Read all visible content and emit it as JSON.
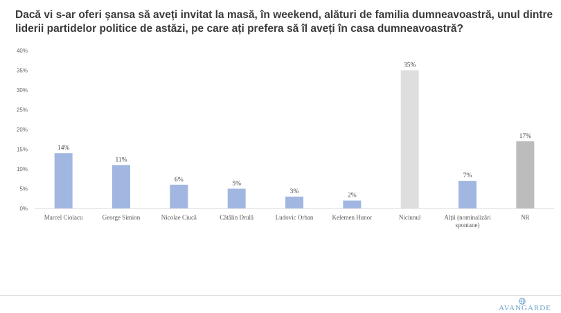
{
  "title": "Dacă vi s-ar oferi șansa să aveți invitat la masă, în weekend, alături de familia dumneavoastră, unul dintre liderii partidelor politice de astăzi, pe care ați prefera să îl aveți în casa dumneavoastră?",
  "logo": {
    "text": "AVANGARDE"
  },
  "chart_data": {
    "type": "bar",
    "categories": [
      "Marcel Ciolacu",
      "George Simion",
      "Nicolae Ciucă",
      "Cătălin Drulă",
      "Ludovic Orban",
      "Kelemen Hunor",
      "Niciunul",
      "Alții (nominalizări spontane)",
      "NR"
    ],
    "category_lines": [
      [
        "Marcel Ciolacu"
      ],
      [
        "George Simion"
      ],
      [
        "Nicolae Ciucă"
      ],
      [
        "Cătălin Drulă"
      ],
      [
        "Ludovic Orban"
      ],
      [
        "Kelemen Hunor"
      ],
      [
        "Niciunul"
      ],
      [
        "Alții (nominalizări",
        "spontane)"
      ],
      [
        "NR"
      ]
    ],
    "values": [
      14,
      11,
      6,
      5,
      3,
      2,
      35,
      7,
      17
    ],
    "data_labels": [
      "14%",
      "11%",
      "6%",
      "5%",
      "3%",
      "2%",
      "35%",
      "7%",
      "17%"
    ],
    "bar_colors": [
      "#a1b7e2",
      "#a1b7e2",
      "#a1b7e2",
      "#a1b7e2",
      "#a1b7e2",
      "#a1b7e2",
      "#dedede",
      "#a1b7e2",
      "#bcbcbc"
    ],
    "ylim": [
      0,
      40
    ],
    "yticks": [
      0,
      5,
      10,
      15,
      20,
      25,
      30,
      35,
      40
    ],
    "ytick_labels": [
      "0%",
      "5%",
      "10%",
      "15%",
      "20%",
      "25%",
      "30%",
      "35%",
      "40%"
    ],
    "grid": false,
    "legend": "none",
    "xlabel": "",
    "ylabel": ""
  }
}
